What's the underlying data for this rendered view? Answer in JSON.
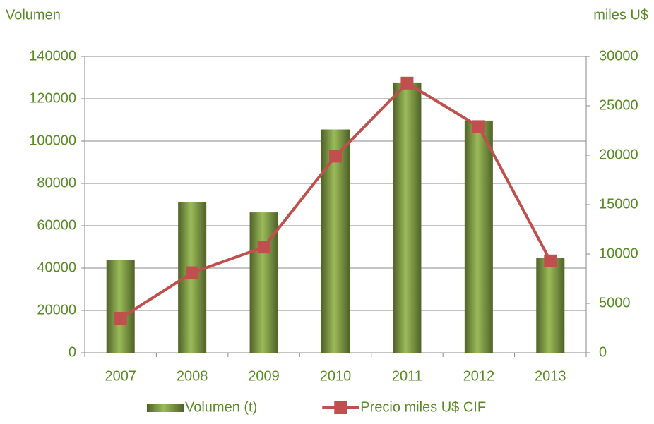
{
  "chart_data": {
    "type": "bar-line",
    "y_label": "Volumen",
    "y2_label": "miles U$",
    "categories": [
      "2007",
      "2008",
      "2009",
      "2010",
      "2011",
      "2012",
      "2013"
    ],
    "series": [
      {
        "name": "Volumen (t)",
        "type": "bar",
        "color": "#77933c",
        "values": [
          44000,
          71000,
          66300,
          105500,
          127700,
          109700,
          45000
        ]
      },
      {
        "name": "Precio miles U$ CIF",
        "type": "line",
        "axis": "y2",
        "color": "#c0504d",
        "values": [
          3500,
          8100,
          10700,
          19900,
          27300,
          22900,
          9300
        ]
      }
    ],
    "ylim": [
      0,
      140000
    ],
    "yticks": [
      0,
      20000,
      40000,
      60000,
      80000,
      100000,
      120000,
      140000
    ],
    "y2lim": [
      0,
      30000
    ],
    "y2ticks": [
      0,
      5000,
      10000,
      15000,
      20000,
      25000,
      30000
    ],
    "grid": true,
    "legend": "bottom"
  }
}
